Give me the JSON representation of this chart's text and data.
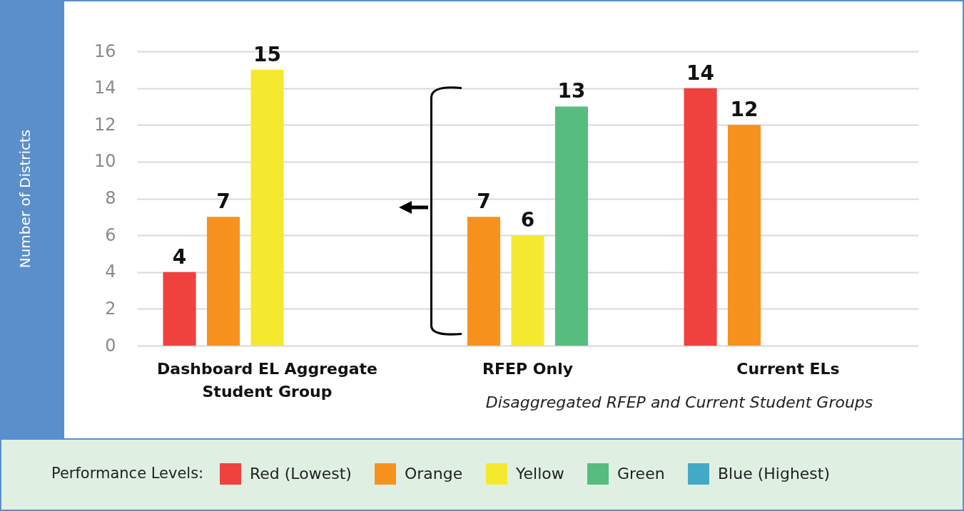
{
  "chart_data": {
    "type": "bar",
    "ylabel": "Number of Districts",
    "legend_title": "Performance Levels:",
    "categories": [
      "Dashboard EL Aggregate Student Group",
      "RFEP Only",
      "Current ELs"
    ],
    "series": [
      {
        "name": "Red (Lowest)",
        "color": "#ef413d",
        "values": [
          4,
          null,
          14
        ]
      },
      {
        "name": "Orange",
        "color": "#f7921e",
        "values": [
          7,
          7,
          12
        ]
      },
      {
        "name": "Yellow",
        "color": "#f5e92f",
        "values": [
          15,
          6,
          null
        ]
      },
      {
        "name": "Green",
        "color": "#56bd7e",
        "values": [
          null,
          13,
          null
        ]
      },
      {
        "name": "Blue (Highest)",
        "color": "#42a9c6",
        "values": [
          null,
          null,
          null
        ]
      }
    ],
    "ylim": [
      0,
      16
    ],
    "yticks": [
      0,
      2,
      4,
      6,
      8,
      10,
      12,
      14,
      16
    ],
    "grid": "y",
    "legend": "bottom",
    "data_labels": true,
    "annotations": [
      "Disaggregated RFEP and Current Student Groups"
    ]
  }
}
